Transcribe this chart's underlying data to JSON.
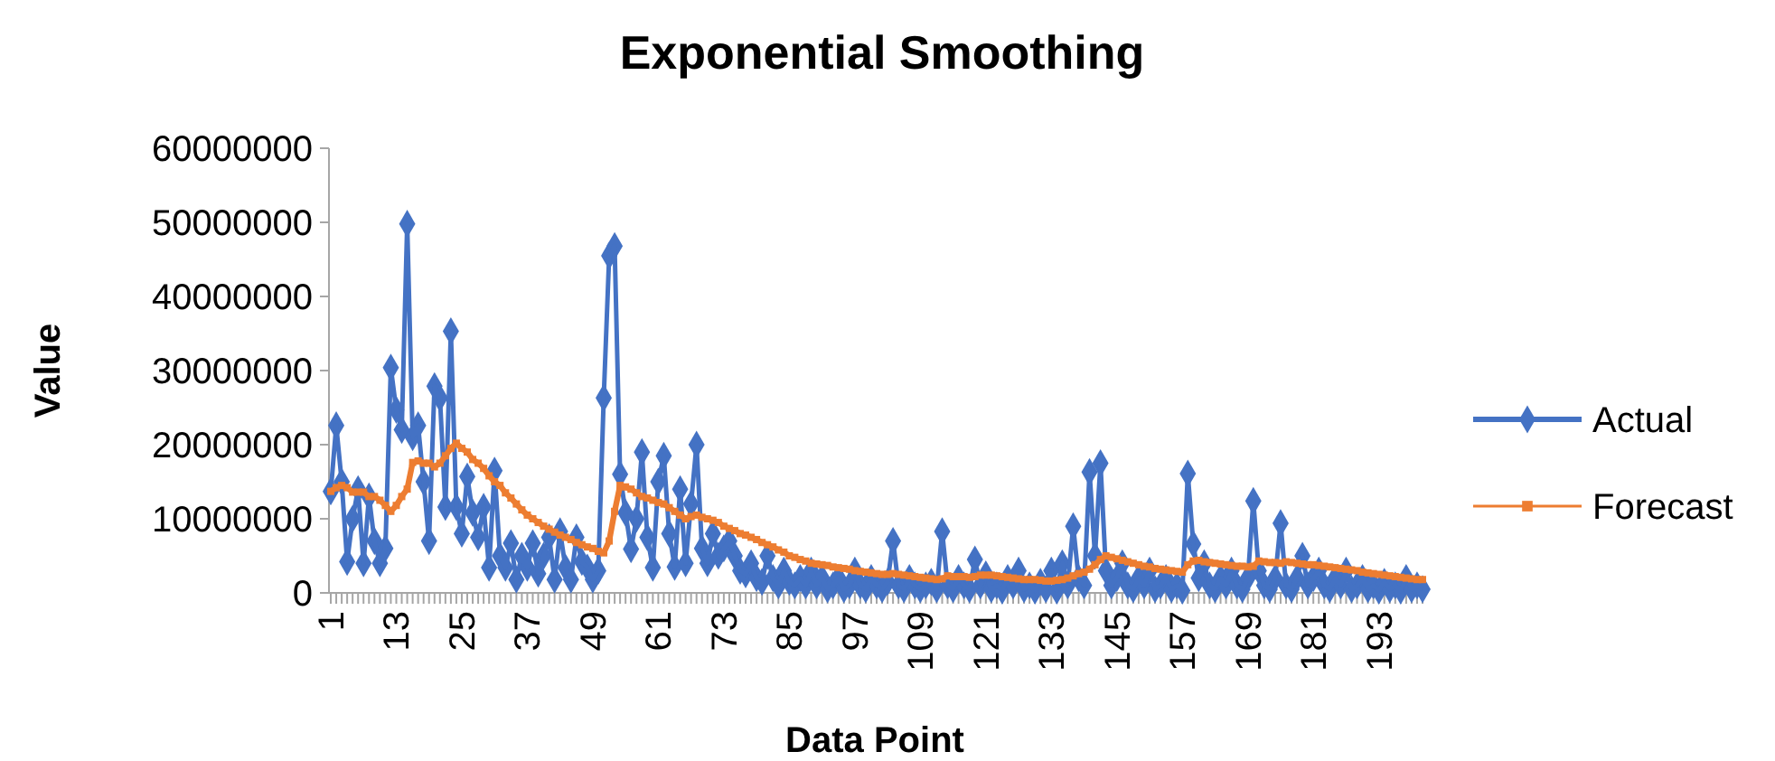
{
  "chart_data": {
    "type": "line",
    "title": "Exponential Smoothing",
    "xlabel": "Data Point",
    "ylabel": "Value",
    "legend": "right",
    "ylim": [
      0,
      60000000
    ],
    "yticks": [
      0,
      10000000,
      20000000,
      30000000,
      40000000,
      50000000,
      60000000
    ],
    "categories": [
      "1",
      null,
      null,
      null,
      null,
      null,
      null,
      null,
      null,
      null,
      null,
      null,
      "13",
      null,
      null,
      null,
      null,
      null,
      null,
      null,
      null,
      null,
      null,
      null,
      "25",
      null,
      null,
      null,
      null,
      null,
      null,
      null,
      null,
      null,
      null,
      null,
      "37",
      null,
      null,
      null,
      null,
      null,
      null,
      null,
      null,
      null,
      null,
      null,
      "49",
      null,
      null,
      null,
      null,
      null,
      null,
      null,
      null,
      null,
      null,
      null,
      "61",
      null,
      null,
      null,
      null,
      null,
      null,
      null,
      null,
      null,
      null,
      null,
      "73",
      null,
      null,
      null,
      null,
      null,
      null,
      null,
      null,
      null,
      null,
      null,
      "85",
      null,
      null,
      null,
      null,
      null,
      null,
      null,
      null,
      null,
      null,
      null,
      "97",
      null,
      null,
      null,
      null,
      null,
      null,
      null,
      null,
      null,
      null,
      null,
      "109",
      null,
      null,
      null,
      null,
      null,
      null,
      null,
      null,
      null,
      null,
      null,
      "121",
      null,
      null,
      null,
      null,
      null,
      null,
      null,
      null,
      null,
      null,
      null,
      "133",
      null,
      null,
      null,
      null,
      null,
      null,
      null,
      null,
      null,
      null,
      null,
      "145",
      null,
      null,
      null,
      null,
      null,
      null,
      null,
      null,
      null,
      null,
      null,
      "157",
      null,
      null,
      null,
      null,
      null,
      null,
      null,
      null,
      null,
      null,
      null,
      "169",
      null,
      null,
      null,
      null,
      null,
      null,
      null,
      null,
      null,
      null,
      null,
      "181",
      null,
      null,
      null,
      null,
      null,
      null,
      null,
      null,
      null,
      null,
      null,
      "193",
      null,
      null,
      null,
      null,
      null,
      null,
      null,
      null
    ],
    "series": [
      {
        "name": "Actual",
        "color": "#4472c4",
        "marker": "diamond",
        "values": [
          13700000,
          22600000,
          15000000,
          4200000,
          10000000,
          14000000,
          4000000,
          13000000,
          7000000,
          4000000,
          6000000,
          30400000,
          24700000,
          22000000,
          49800000,
          21000000,
          22600000,
          15000000,
          7000000,
          27900000,
          26300000,
          11600000,
          35300000,
          11600000,
          8000000,
          15700000,
          10800000,
          7500000,
          11600000,
          3400000,
          16500000,
          5000000,
          3400000,
          6700000,
          1800000,
          5000000,
          3400000,
          6700000,
          2600000,
          5000000,
          7500000,
          1800000,
          8300000,
          3400000,
          1800000,
          7500000,
          4200000,
          3400000,
          1800000,
          3000000,
          26300000,
          45500000,
          46800000,
          16000000,
          10800000,
          5900000,
          10000000,
          19000000,
          7500000,
          3400000,
          15000000,
          18500000,
          8000000,
          3500000,
          14000000,
          4000000,
          12000000,
          20000000,
          6000000,
          4000000,
          8000000,
          5000000,
          6000000,
          7000000,
          5000000,
          3000000,
          2500000,
          4000000,
          2000000,
          1500000,
          5000000,
          2000000,
          1000000,
          3000000,
          1500000,
          1000000,
          2000000,
          1000000,
          3000000,
          1000000,
          2000000,
          500000,
          1000000,
          2000000,
          500000,
          1000000,
          3000000,
          1000000,
          500000,
          2000000,
          1000000,
          500000,
          1500000,
          7000000,
          1000000,
          500000,
          2000000,
          1000000,
          500000,
          1000000,
          1500000,
          500000,
          8300000,
          1000000,
          500000,
          2000000,
          1000000,
          500000,
          4500000,
          1000000,
          2500000,
          500000,
          1000000,
          300000,
          2000000,
          1000000,
          3000000,
          500000,
          1000000,
          300000,
          1500000,
          500000,
          3000000,
          300000,
          4000000,
          1000000,
          9000000,
          2000000,
          1000000,
          16300000,
          5000000,
          17500000,
          3000000,
          1000000,
          2000000,
          4000000,
          1000000,
          500000,
          2000000,
          1000000,
          3000000,
          500000,
          1000000,
          2000000,
          500000,
          1000000,
          300000,
          16100000,
          6600000,
          2000000,
          4000000,
          1000000,
          500000,
          2000000,
          1000000,
          3000000,
          1000000,
          500000,
          2000000,
          12400000,
          3000000,
          1000000,
          500000,
          2000000,
          9400000,
          1000000,
          500000,
          2000000,
          5000000,
          1000000,
          2000000,
          3000000,
          1000000,
          500000,
          2000000,
          1000000,
          3000000,
          500000,
          1000000,
          2000000,
          500000,
          1000000,
          300000,
          1500000,
          500000,
          1000000,
          300000,
          2000000,
          500000,
          1000000,
          500000
        ]
      },
      {
        "name": "Forecast",
        "color": "#ed7d31",
        "marker": "square",
        "values": [
          13700000,
          14200000,
          14500000,
          14200000,
          13600000,
          13600000,
          13600000,
          13000000,
          13000000,
          12500000,
          11800000,
          11000000,
          11800000,
          13000000,
          14000000,
          17600000,
          17800000,
          17500000,
          17500000,
          17000000,
          17500000,
          18500000,
          19500000,
          20200000,
          19500000,
          19000000,
          18000000,
          17500000,
          16800000,
          15800000,
          15000000,
          14500000,
          13500000,
          12800000,
          12000000,
          11200000,
          10500000,
          10000000,
          9500000,
          9000000,
          8600000,
          8200000,
          7800000,
          7500000,
          7200000,
          6800000,
          6500000,
          6200000,
          6000000,
          5600000,
          5400000,
          7000000,
          11000000,
          14500000,
          14300000,
          14000000,
          13500000,
          13000000,
          12800000,
          12500000,
          12200000,
          12000000,
          11500000,
          11000000,
          10500000,
          10000000,
          10300000,
          10500000,
          10200000,
          10000000,
          9800000,
          9500000,
          9000000,
          8700000,
          8400000,
          8000000,
          7800000,
          7500000,
          7200000,
          6800000,
          6500000,
          6200000,
          5800000,
          5500000,
          5000000,
          4800000,
          4500000,
          4300000,
          4000000,
          3900000,
          3800000,
          3700000,
          3500000,
          3400000,
          3300000,
          3200000,
          3000000,
          2900000,
          2800000,
          2700000,
          2600000,
          2500000,
          2500000,
          2600000,
          2500000,
          2400000,
          2300000,
          2200000,
          2100000,
          2000000,
          1900000,
          1800000,
          1900000,
          2300000,
          2200000,
          2200000,
          2200000,
          2100000,
          2200000,
          2400000,
          2400000,
          2400000,
          2300000,
          2200000,
          2100000,
          2000000,
          1900000,
          1800000,
          1800000,
          1800000,
          1700000,
          1600000,
          1600000,
          1700000,
          1800000,
          2000000,
          2300000,
          2600000,
          2800000,
          3200000,
          3800000,
          4500000,
          5000000,
          4800000,
          4600000,
          4400000,
          4200000,
          4000000,
          3800000,
          3600000,
          3500000,
          3300000,
          3200000,
          3100000,
          3000000,
          2900000,
          2800000,
          3800000,
          4300000,
          4400000,
          4200000,
          4100000,
          4000000,
          3900000,
          3800000,
          3700000,
          3600000,
          3600000,
          3500000,
          3600000,
          4300000,
          4200000,
          4100000,
          4100000,
          4000000,
          4200000,
          4100000,
          4000000,
          3900000,
          3800000,
          3800000,
          3700000,
          3600000,
          3500000,
          3400000,
          3300000,
          3200000,
          3100000,
          3000000,
          2800000,
          2700000,
          2600000,
          2500000,
          2400000,
          2300000,
          2200000,
          2100000,
          2000000,
          1900000,
          1800000,
          1800000
        ]
      }
    ]
  }
}
